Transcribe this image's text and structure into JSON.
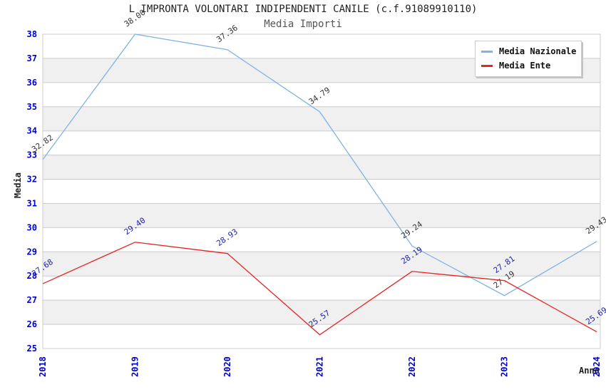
{
  "title": "L IMPRONTA VOLONTARI INDIPENDENTI CANILE (c.f.91089910110)",
  "subtitle": "Media Importi",
  "legend": {
    "items": [
      {
        "label": "Media Nazionale",
        "color": "#7fb2e5"
      },
      {
        "label": "Media Ente",
        "color": "#e62424"
      }
    ]
  },
  "colors": {
    "grid_line": "#cccccc",
    "band_gray": "#f0f0f0",
    "axis_tick_text": "#0000cc",
    "national_series": "#7fb2e5",
    "ente_series": "#e62424",
    "national_point_label": "#333333",
    "ente_point_label": "#2222aa"
  },
  "chart_data": {
    "type": "line",
    "title": "L IMPRONTA VOLONTARI INDIPENDENTI CANILE (c.f.91089910110)",
    "subtitle": "Media Importi",
    "xlabel": "Anno",
    "ylabel": "Media",
    "x": [
      "2018",
      "2019",
      "2020",
      "2021",
      "2022",
      "2023",
      "2024"
    ],
    "yticks": [
      25,
      26,
      27,
      28,
      29,
      30,
      31,
      32,
      33,
      34,
      35,
      36,
      37,
      38
    ],
    "ylim": [
      25,
      38
    ],
    "grid": "horizontal-with-alternating-bands",
    "legend_position": "top-right",
    "series": [
      {
        "name": "Media Nazionale",
        "color": "#7fb2e5",
        "label_color": "#333333",
        "values": [
          32.82,
          38.0,
          37.36,
          34.79,
          29.24,
          27.19,
          29.43
        ],
        "point_labels": [
          "32.82",
          "38.00",
          "37.36",
          "34.79",
          "29.24",
          "27.19",
          "29.43"
        ]
      },
      {
        "name": "Media Ente",
        "color": "#e62424",
        "label_color": "#2222aa",
        "values": [
          27.68,
          29.4,
          28.93,
          25.57,
          28.19,
          27.81,
          25.69
        ],
        "point_labels": [
          "27.68",
          "29.40",
          "28.93",
          "25.57",
          "28.19",
          "27.81",
          "25.69"
        ]
      }
    ]
  }
}
